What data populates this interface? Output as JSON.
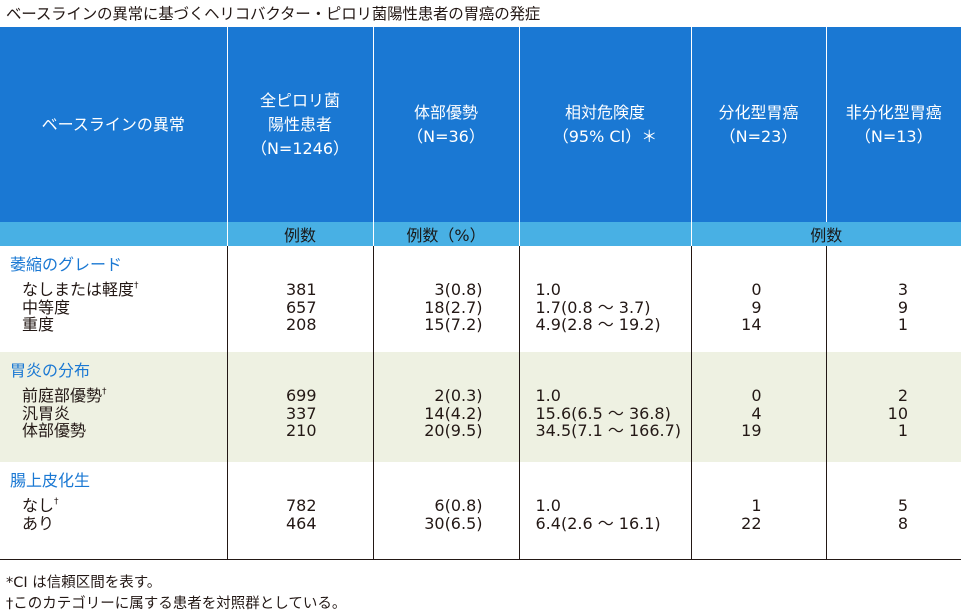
{
  "title": "ベースラインの異常に基づくヘリコバクター・ピロリ菌陽性患者の胃癌の発症",
  "header": {
    "col1": "ベースラインの異常",
    "col2_l1": "全ピロリ菌",
    "col2_l2": "陽性患者",
    "col2_l3": "（N=1246）",
    "col3_l1": "体部優勢",
    "col3_l2": "（N=36）",
    "col4_l1": "相対危険度",
    "col4_l2": "（95% CI）＊",
    "col5_l1": "分化型胃癌",
    "col5_l2": "（N=23）",
    "col6_l1": "非分化型胃癌",
    "col6_l2": "（N=13）"
  },
  "subheader": {
    "col2": "例数",
    "col3": "例数（%）",
    "col56": "例数"
  },
  "dagger": "†",
  "sections": [
    {
      "title": "萎縮のグレード",
      "rows": [
        {
          "label": "なしまたは軽度",
          "dagger": true,
          "n": "381",
          "body": "3(0.8)",
          "rr": "1.0",
          "diff": "0",
          "undiff": "3"
        },
        {
          "label": "中等度",
          "dagger": false,
          "n": "657",
          "body": "18(2.7)",
          "rr": "1.7(0.8 ～ 3.7)",
          "diff": "9",
          "undiff": "9"
        },
        {
          "label": "重度",
          "dagger": false,
          "n": "208",
          "body": "15(7.2)",
          "rr": "4.9(2.8 ～ 19.2)",
          "diff": "14",
          "undiff": "1"
        }
      ]
    },
    {
      "title": "胃炎の分布",
      "rows": [
        {
          "label": "前庭部優勢",
          "dagger": true,
          "n": "699",
          "body": "2(0.3)",
          "rr": "1.0",
          "diff": "0",
          "undiff": "2"
        },
        {
          "label": "汎胃炎",
          "dagger": false,
          "n": "337",
          "body": "14(4.2)",
          "rr": "15.6(6.5 ～ 36.8)",
          "diff": "4",
          "undiff": "10"
        },
        {
          "label": "体部優勢",
          "dagger": false,
          "n": "210",
          "body": "20(9.5)",
          "rr": "34.5(7.1 ～ 166.7)",
          "diff": "19",
          "undiff": "1"
        }
      ]
    },
    {
      "title": "腸上皮化生",
      "rows": [
        {
          "label": "なし",
          "dagger": true,
          "n": "782",
          "body": "6(0.8)",
          "rr": "1.0",
          "diff": "1",
          "undiff": "5"
        },
        {
          "label": "あり",
          "dagger": false,
          "n": "464",
          "body": "30(6.5)",
          "rr": "6.4(2.6 ～ 16.1)",
          "diff": "22",
          "undiff": "8"
        }
      ]
    }
  ],
  "footnotes": [
    "*CI は信頼区間を表す。",
    "†このカテゴリーに属する患者を対照群としている。"
  ]
}
